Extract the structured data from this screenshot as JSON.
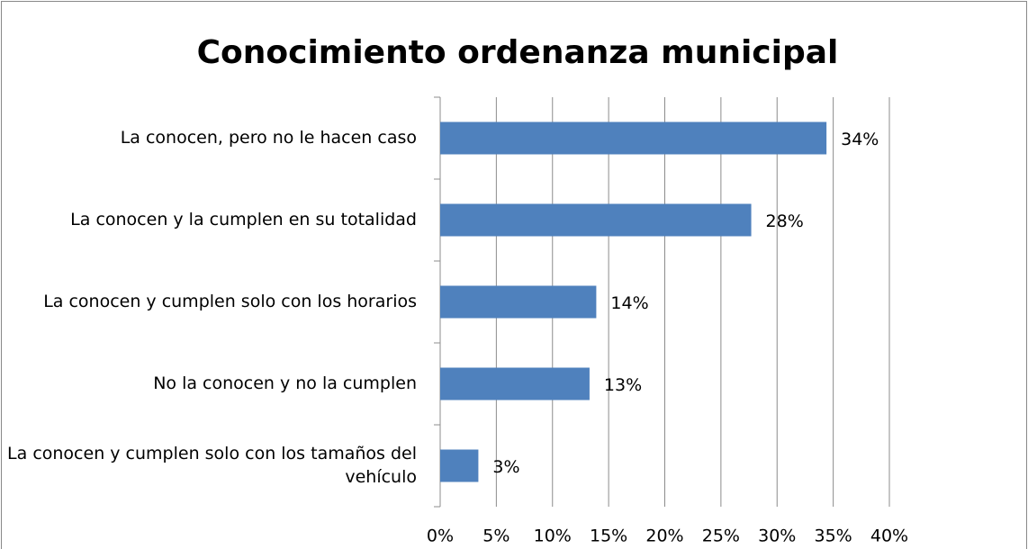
{
  "chart_data": {
    "type": "bar",
    "orientation": "horizontal",
    "title": "Conocimiento ordenanza municipal",
    "categories": [
      "La conocen, pero no le hacen caso",
      "La conocen y la cumplen en su totalidad",
      "La conocen y cumplen solo con los horarios",
      "No la conocen y no la cumplen",
      "La conocen y cumplen solo con los tamaños del vehículo"
    ],
    "values": [
      34.4,
      27.7,
      13.9,
      13.3,
      3.4
    ],
    "value_labels": [
      "34%",
      "28%",
      "14%",
      "13%",
      "3%"
    ],
    "color": "#4f81bd",
    "xlim": [
      0,
      40
    ],
    "xticks": [
      {
        "value": 0,
        "label": "0%"
      },
      {
        "value": 5,
        "label": "5%"
      },
      {
        "value": 10,
        "label": "10%"
      },
      {
        "value": 15,
        "label": "15%"
      },
      {
        "value": 20,
        "label": "20%"
      },
      {
        "value": 25,
        "label": "25%"
      },
      {
        "value": 30,
        "label": "30%"
      },
      {
        "value": 35,
        "label": "35%"
      },
      {
        "value": 40,
        "label": "40%"
      }
    ],
    "grid": true
  }
}
